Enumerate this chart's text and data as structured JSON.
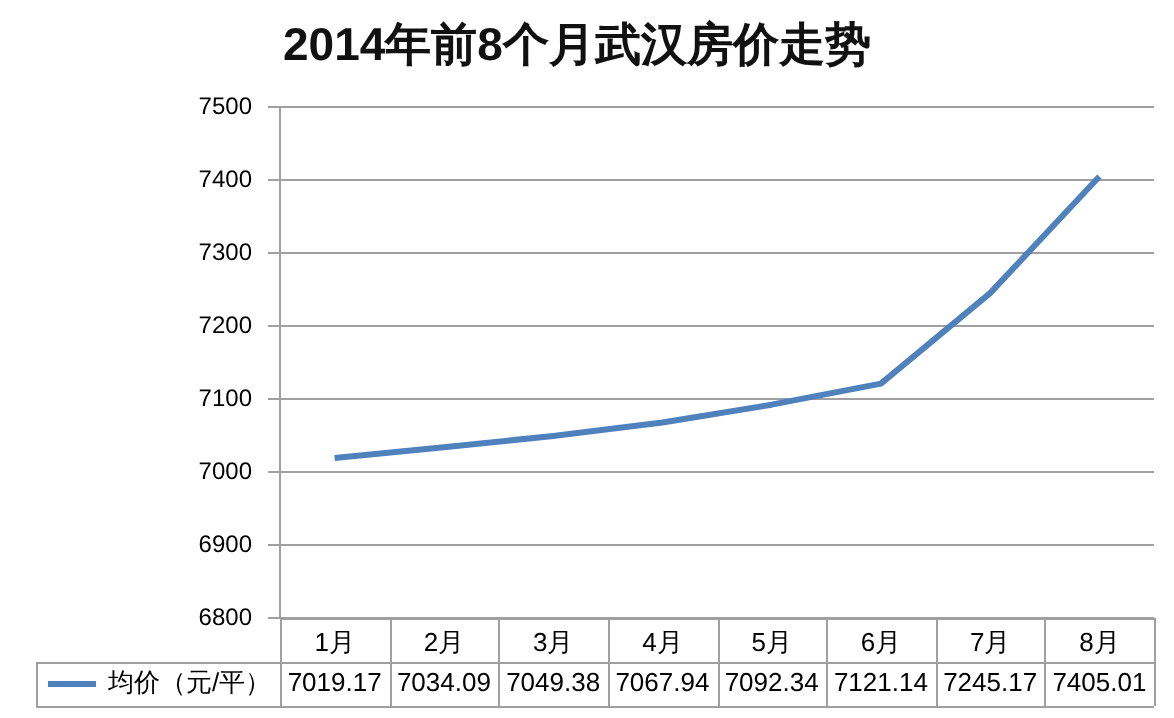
{
  "chart_data": {
    "type": "line",
    "title": "2014年前8个月武汉房价走势",
    "categories": [
      "1月",
      "2月",
      "3月",
      "4月",
      "5月",
      "6月",
      "7月",
      "8月"
    ],
    "series": [
      {
        "name": "均价（元/平）",
        "color": "#4f81bd",
        "values": [
          7019.17,
          7034.09,
          7049.38,
          7067.94,
          7092.34,
          7121.14,
          7245.17,
          7405.01
        ]
      }
    ],
    "ylim": [
      6800,
      7500
    ],
    "yticks": [
      6800,
      6900,
      7000,
      7100,
      7200,
      7300,
      7400,
      7500
    ],
    "grid": "y",
    "legend": "bottom",
    "data_labels": true,
    "marker": "none",
    "line_style": "solid"
  }
}
